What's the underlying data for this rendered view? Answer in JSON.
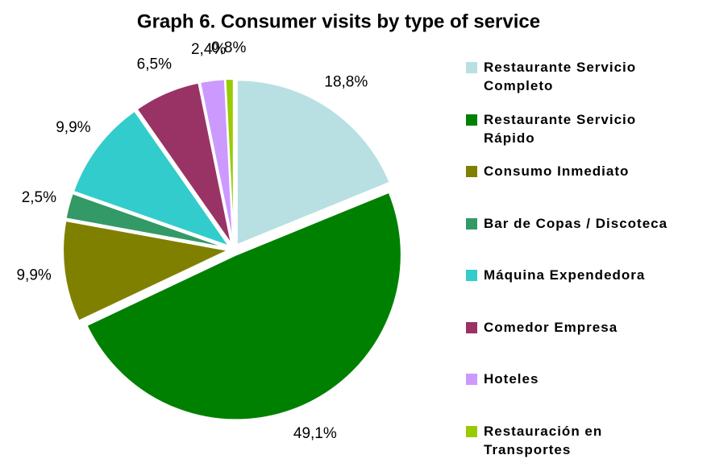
{
  "chart_data": {
    "type": "pie",
    "title": "Graph 6. Consumer visits by type of service",
    "categories": [
      "Restaurante Servicio Completo",
      "Restaurante Servicio Rápido",
      "Consumo Inmediato",
      "Bar de Copas / Discoteca",
      "Máquina Expendedora",
      "Comedor Empresa",
      "Hoteles",
      "Restauración en Transportes"
    ],
    "values": [
      18.8,
      49.1,
      9.9,
      2.5,
      9.9,
      6.5,
      2.4,
      0.8
    ],
    "value_labels": [
      "18,8%",
      "49,1%",
      "9,9%",
      "2,5%",
      "9,9%",
      "6,5%",
      "2,4%",
      "0,8%"
    ],
    "colors": [
      "#b8e0e3",
      "#008000",
      "#808000",
      "#339966",
      "#33cccc",
      "#993366",
      "#cc99ff",
      "#99cc00"
    ],
    "legend": "right"
  }
}
